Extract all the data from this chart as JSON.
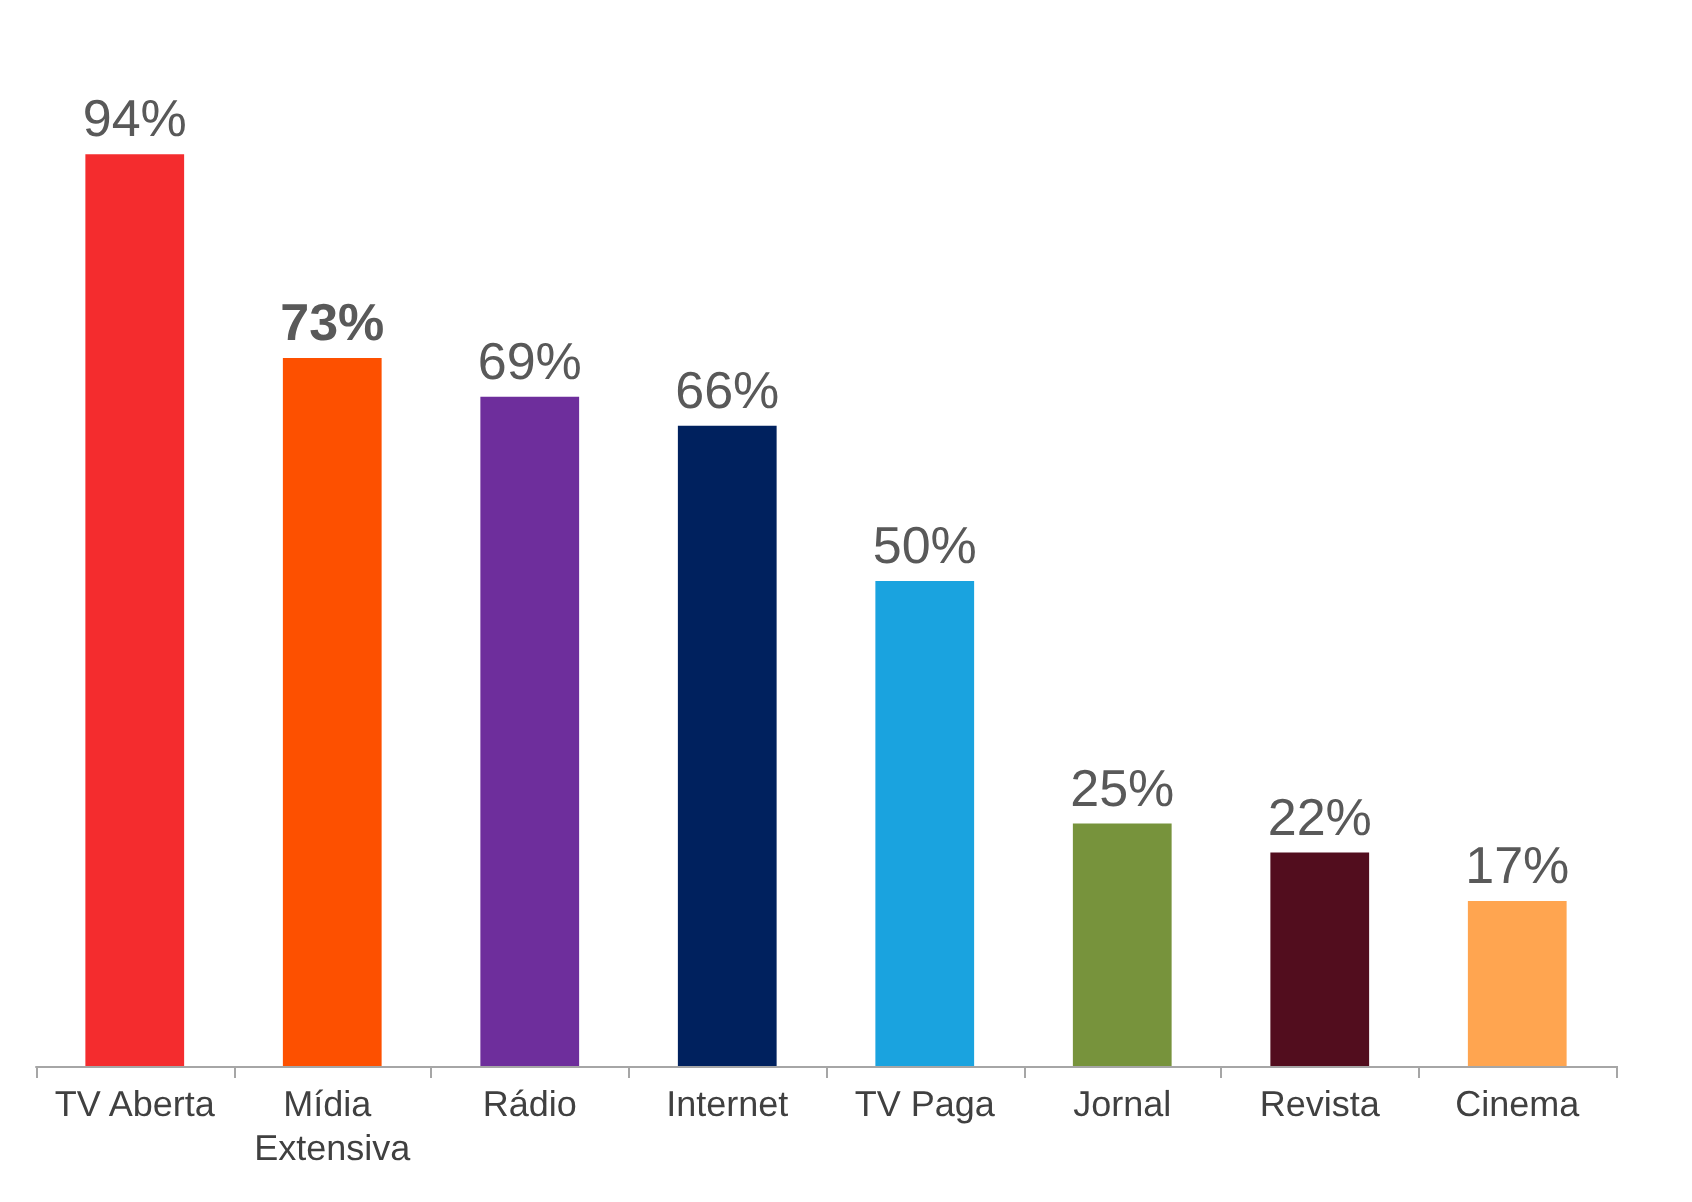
{
  "chart_data": {
    "type": "bar",
    "categories": [
      "TV Aberta",
      "Mídia Extensiva",
      "Rádio",
      "Internet",
      "TV Paga",
      "Jornal",
      "Revista",
      "Cinema"
    ],
    "values": [
      94,
      73,
      69,
      66,
      50,
      25,
      22,
      17
    ],
    "colors": [
      "#f42c2e",
      "#fd5000",
      "#6e2e9c",
      "#00215e",
      "#1aa3df",
      "#77933c",
      "#520d1e",
      "#ffa550"
    ],
    "value_labels": [
      "94%",
      "73%",
      "69%",
      "66%",
      "50%",
      "25%",
      "22%",
      "17%"
    ]
  }
}
